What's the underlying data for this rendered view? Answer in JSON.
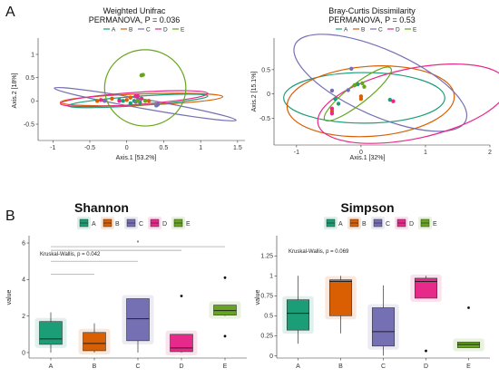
{
  "panel_labels": [
    "A",
    "B"
  ],
  "colors": {
    "A": "#1b9e77",
    "B": "#d95f02",
    "C": "#7570b3",
    "D": "#e7298a",
    "E": "#66a61e"
  },
  "chart_data": [
    {
      "type": "scatter",
      "title": "Weighted Unifrac",
      "subtitle": "PERMANOVA, P = 0.036",
      "xlabel": "Axis.1   [53.2%]",
      "ylabel": "Axis.2   [18%]",
      "xlim": [
        -1.2,
        1.6
      ],
      "ylim": [
        -0.85,
        1.35
      ],
      "xticks": [
        -1.0,
        -0.5,
        0.0,
        0.5,
        1.0,
        1.5
      ],
      "yticks": [
        -0.5,
        0.0,
        0.5,
        1.0
      ],
      "legend": [
        "A",
        "B",
        "C",
        "D",
        "E"
      ],
      "legend_position": "top",
      "grid": false,
      "series": [
        {
          "name": "A",
          "points": [
            [
              -0.1,
              0.02
            ],
            [
              0.05,
              -0.05
            ],
            [
              0.18,
              -0.03
            ],
            [
              -0.05,
              0.0
            ],
            [
              0.1,
              0.0
            ]
          ]
        },
        {
          "name": "B",
          "points": [
            [
              -0.4,
              0.0
            ],
            [
              -0.2,
              0.05
            ],
            [
              0.0,
              0.02
            ],
            [
              0.3,
              0.0
            ],
            [
              0.05,
              0.07
            ]
          ]
        },
        {
          "name": "C",
          "points": [
            [
              -0.3,
              0.0
            ],
            [
              0.12,
              -0.02
            ],
            [
              0.4,
              -0.1
            ],
            [
              0.15,
              0.02
            ],
            [
              0.42,
              -0.08
            ]
          ]
        },
        {
          "name": "D",
          "points": [
            [
              -0.35,
              0.02
            ],
            [
              0.15,
              0.1
            ],
            [
              0.2,
              0.05
            ],
            [
              0.12,
              0.1
            ],
            [
              -0.1,
              0.0
            ]
          ]
        },
        {
          "name": "E",
          "points": [
            [
              0.2,
              0.55
            ],
            [
              0.2,
              0.55
            ],
            [
              0.22,
              0.56
            ],
            [
              0.25,
              0.0
            ],
            [
              0.15,
              0.0
            ]
          ]
        }
      ],
      "ellipses": [
        {
          "name": "A",
          "cx": 0.15,
          "cy": 0.0,
          "rx": 0.95,
          "ry": 0.1,
          "angle": 4
        },
        {
          "name": "B",
          "cx": 0.2,
          "cy": 0.03,
          "rx": 1.1,
          "ry": 0.12,
          "angle": 2
        },
        {
          "name": "C",
          "cx": 0.25,
          "cy": -0.07,
          "rx": 1.25,
          "ry": 0.1,
          "angle": -10
        },
        {
          "name": "D",
          "cx": 0.1,
          "cy": 0.05,
          "rx": 1.0,
          "ry": 0.13,
          "angle": 4
        },
        {
          "name": "E",
          "cx": 0.25,
          "cy": 0.28,
          "rx": 0.55,
          "ry": 0.82,
          "angle": 0
        }
      ]
    },
    {
      "type": "scatter",
      "title": "Bray-Curtis Dissimilarity",
      "subtitle": "PERMANOVA, P = 0.53",
      "xlabel": "Axis.1   [32%]",
      "ylabel": "Axis.2   [15.1%]",
      "xlim": [
        -1.35,
        2.0
      ],
      "ylim": [
        -1.05,
        1.15
      ],
      "xticks": [
        -1,
        0,
        1,
        2
      ],
      "yticks": [
        -0.5,
        0.0,
        0.5
      ],
      "legend": [
        "A",
        "B",
        "C",
        "D",
        "E"
      ],
      "legend_position": "top",
      "grid": false,
      "series": [
        {
          "name": "A",
          "points": [
            [
              -0.4,
              -0.1
            ],
            [
              -0.35,
              -0.2
            ],
            [
              0.45,
              -0.12
            ],
            [
              -0.05,
              0.2
            ]
          ]
        },
        {
          "name": "B",
          "points": [
            [
              -0.1,
              0.18
            ],
            [
              0.0,
              -0.1
            ],
            [
              0.0,
              -0.05
            ],
            [
              -0.45,
              -0.35
            ]
          ]
        },
        {
          "name": "C",
          "points": [
            [
              -0.15,
              0.52
            ],
            [
              -0.45,
              0.07
            ],
            [
              -0.2,
              0.08
            ]
          ]
        },
        {
          "name": "D",
          "points": [
            [
              -0.45,
              -0.3
            ],
            [
              0.5,
              -0.15
            ],
            [
              -0.45,
              -0.4
            ]
          ]
        },
        {
          "name": "E",
          "points": [
            [
              0.02,
              0.22
            ],
            [
              -0.1,
              0.18
            ],
            [
              0.05,
              0.15
            ]
          ]
        }
      ],
      "ellipses": [
        {
          "name": "A",
          "cx": 0.05,
          "cy": -0.08,
          "rx": 1.25,
          "ry": 0.52,
          "angle": 0
        },
        {
          "name": "B",
          "cx": 0.15,
          "cy": -0.15,
          "rx": 1.3,
          "ry": 0.72,
          "angle": 4
        },
        {
          "name": "C",
          "cx": 0.3,
          "cy": 0.23,
          "rx": 1.45,
          "ry": 0.68,
          "angle": -24
        },
        {
          "name": "D",
          "cx": 0.8,
          "cy": -0.2,
          "rx": 1.5,
          "ry": 0.72,
          "angle": 12
        },
        {
          "name": "E",
          "cx": -0.05,
          "cy": 0.0,
          "rx": 0.65,
          "ry": 0.2,
          "angle": 38
        }
      ]
    },
    {
      "type": "box",
      "title": "Shannon",
      "annotation": "Kruskal-Wallis, p = 0.042",
      "xlabel": "",
      "ylabel": "value",
      "ylim": [
        -0.3,
        6.3
      ],
      "yticks": [
        0,
        2,
        4,
        6
      ],
      "categories": [
        "A",
        "B",
        "C",
        "D",
        "E"
      ],
      "legend": [
        "A",
        "B",
        "C",
        "D",
        "E"
      ],
      "legend_position": "top",
      "boxes": [
        {
          "name": "A",
          "q1": 0.45,
          "median": 0.75,
          "q3": 1.7,
          "whisker_low": 0.0,
          "whisker_high": 2.2,
          "outliers": []
        },
        {
          "name": "B",
          "q1": 0.1,
          "median": 0.5,
          "q3": 1.1,
          "whisker_low": 0.0,
          "whisker_high": 1.6,
          "outliers": []
        },
        {
          "name": "C",
          "q1": 0.65,
          "median": 1.85,
          "q3": 2.95,
          "whisker_low": 0.0,
          "whisker_high": 2.95,
          "outliers": []
        },
        {
          "name": "D",
          "q1": 0.05,
          "median": 0.25,
          "q3": 1.0,
          "whisker_low": 0.0,
          "whisker_high": 1.0,
          "outliers": [
            3.1
          ]
        },
        {
          "name": "E",
          "q1": 2.05,
          "median": 2.3,
          "q3": 2.6,
          "whisker_low": 2.0,
          "whisker_high": 2.6,
          "outliers": [
            4.1,
            0.9
          ]
        }
      ],
      "comparison_brackets": [
        [
          0,
          1,
          4.3
        ],
        [
          0,
          2,
          5.0
        ],
        [
          0,
          3,
          5.6
        ],
        [
          0,
          4,
          5.8
        ]
      ],
      "significance_marks": [
        {
          "text": "*",
          "position": 2,
          "value": 6.0
        }
      ]
    },
    {
      "type": "box",
      "title": "Simpson",
      "annotation": "Kruskal-Wallis, p = 0.069",
      "xlabel": "",
      "ylabel": "value",
      "ylim": [
        -0.03,
        1.48
      ],
      "yticks": [
        0.0,
        0.25,
        0.5,
        0.75,
        1.0,
        1.25
      ],
      "categories": [
        "A",
        "B",
        "C",
        "D",
        "E"
      ],
      "legend": [
        "A",
        "B",
        "C",
        "D",
        "E"
      ],
      "legend_position": "top",
      "boxes": [
        {
          "name": "A",
          "q1": 0.32,
          "median": 0.53,
          "q3": 0.7,
          "whisker_low": 0.15,
          "whisker_high": 1.0,
          "outliers": []
        },
        {
          "name": "B",
          "q1": 0.5,
          "median": 0.93,
          "q3": 0.95,
          "whisker_low": 0.28,
          "whisker_high": 1.0,
          "outliers": []
        },
        {
          "name": "C",
          "q1": 0.12,
          "median": 0.3,
          "q3": 0.6,
          "whisker_low": 0.0,
          "whisker_high": 0.88,
          "outliers": []
        },
        {
          "name": "D",
          "q1": 0.72,
          "median": 0.93,
          "q3": 0.97,
          "whisker_low": 0.72,
          "whisker_high": 1.0,
          "outliers": [
            0.06
          ]
        },
        {
          "name": "E",
          "q1": 0.1,
          "median": 0.14,
          "q3": 0.17,
          "whisker_low": 0.1,
          "whisker_high": 0.17,
          "outliers": [
            0.6
          ]
        }
      ]
    }
  ]
}
